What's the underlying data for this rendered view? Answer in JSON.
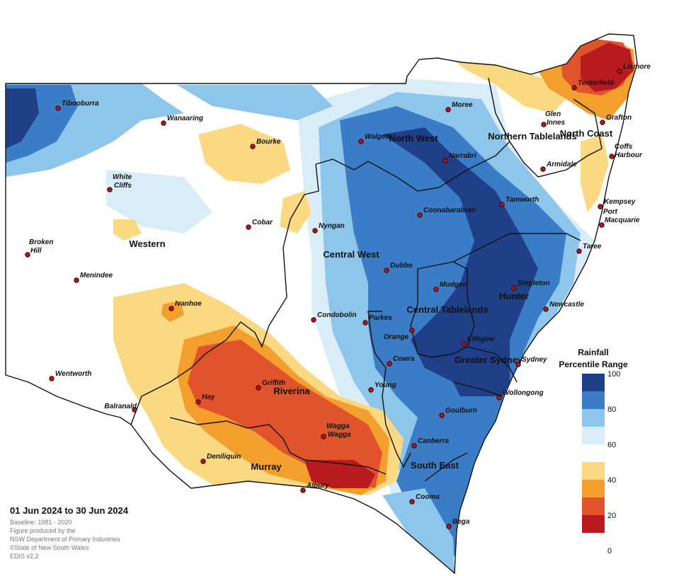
{
  "date_range": "01 Jun 2024 to 30 Jun 2024",
  "credits": [
    "Baseline: 1981 - 2020",
    "Figure produced by the",
    "NSW Department of Primary Industries",
    "©State of New South Wales",
    "EDIS v2.2"
  ],
  "legend": {
    "title_line1": "Rainfall",
    "title_line2": "Percentile Range",
    "ticks": [
      "100",
      "80",
      "60",
      "40",
      "20",
      "0"
    ],
    "colors": [
      "#1f3f88",
      "#3b7cc6",
      "#8ec5ea",
      "#d9edf8",
      "#ffffff",
      "#fbd983",
      "#f29f2d",
      "#e0532b",
      "#b81a1f"
    ]
  },
  "regions": [
    "North West",
    "Northern Tablelands",
    "North Coast",
    "Western",
    "Central West",
    "Hunter",
    "Central Tablelands",
    "Greater Sydney",
    "Riverina",
    "Murray",
    "South East"
  ],
  "towns": [
    "Tibooburra",
    "Wanaaring",
    "Bourke",
    "Walgett",
    "Moree",
    "Tenterfield",
    "Lismore",
    "Glen Innes",
    "Grafton",
    "Coffs Harbour",
    "Narrabri",
    "Armidale",
    "White Cliffs",
    "Coonabarabran",
    "Tamworth",
    "Kempsey",
    "Port Macquarie",
    "Cobar",
    "Nyngan",
    "Broken Hill",
    "Taree",
    "Dubbo",
    "Menindee",
    "Mudgee",
    "Singleton",
    "Ivanhoe",
    "Newcastle",
    "Condobolin",
    "Parkes",
    "Orange",
    "Lithgow",
    "Sydney",
    "Cowra",
    "Wentworth",
    "Griffith",
    "Young",
    "Wollongong",
    "Hay",
    "Balranald",
    "Goulburn",
    "Canberra",
    "Wagga Wagga",
    "Deniliquin",
    "Albury",
    "Cooma",
    "Bega"
  ]
}
